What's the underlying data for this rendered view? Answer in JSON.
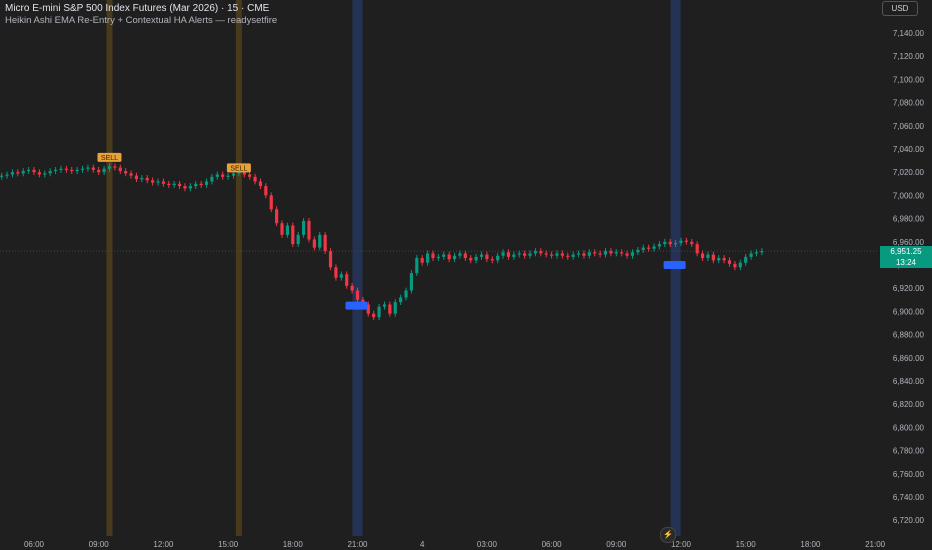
{
  "header": {
    "symbol_line": "Micro E-mini S&P 500 Index Futures (Mar 2026) · 15 · CME",
    "indicator_line": "Heikin Ashi EMA Re-Entry + Contextual HA Alerts — readysetfire"
  },
  "currency_button": "USD",
  "price_label": {
    "price": "6,951.25",
    "countdown": "13:24"
  },
  "replay_icon_glyph": "⚡",
  "colors": {
    "background": "#1f1f1f",
    "up": "#089981",
    "down": "#f23645",
    "sell_band": "#4a3a1c",
    "buy_band": "#243354",
    "sell_label": "#e6a13a",
    "buy_marker": "#2962ff",
    "axis_text": "#b2b5be"
  },
  "chart_data": {
    "type": "candlestick",
    "price_axis_ticks": [
      "7,140.00",
      "7,120.00",
      "7,100.00",
      "7,080.00",
      "7,060.00",
      "7,040.00",
      "7,020.00",
      "7,000.00",
      "6,980.00",
      "6,960.00",
      "6,940.00",
      "6,920.00",
      "6,900.00",
      "6,880.00",
      "6,860.00",
      "6,840.00",
      "6,820.00",
      "6,800.00",
      "6,780.00",
      "6,760.00",
      "6,740.00",
      "6,720.00"
    ],
    "time_axis_ticks": [
      "06:00",
      "09:00",
      "12:00",
      "15:00",
      "18:00",
      "21:00",
      "4",
      "03:00",
      "06:00",
      "09:00",
      "12:00",
      "15:00",
      "18:00",
      "21:00"
    ],
    "ylim": [
      6710,
      7150
    ],
    "bars_per_hour": 4,
    "first_bar_hour": 4.25,
    "closes": [
      7016,
      7017,
      7018,
      7020,
      7019,
      7021,
      7022,
      7020,
      7018,
      7019,
      7021,
      7022,
      7023,
      7022,
      7021,
      7022,
      7023,
      7024,
      7022,
      7020,
      7023,
      7025,
      7024,
      7021,
      7019,
      7017,
      7014,
      7015,
      7013,
      7011,
      7012,
      7010,
      7009,
      7010,
      7008,
      7006,
      7008,
      7010,
      7009,
      7012,
      7016,
      7018,
      7016,
      7017,
      7019,
      7020,
      7018,
      7016,
      7012,
      7008,
      7000,
      6988,
      6976,
      6966,
      6974,
      6958,
      6966,
      6978,
      6962,
      6955,
      6966,
      6952,
      6938,
      6929,
      6932,
      6922,
      6918,
      6910,
      6906,
      6898,
      6895,
      6904,
      6906,
      6898,
      6908,
      6912,
      6918,
      6933,
      6946,
      6942,
      6950,
      6946,
      6947,
      6949,
      6945,
      6948,
      6950,
      6946,
      6944,
      6947,
      6949,
      6945,
      6944,
      6948,
      6951,
      6947,
      6949,
      6950,
      6948,
      6950,
      6952,
      6950,
      6949,
      6948,
      6950,
      6948,
      6947,
      6949,
      6950,
      6948,
      6951,
      6950,
      6949,
      6952,
      6950,
      6951,
      6950,
      6948,
      6951,
      6953,
      6955,
      6954,
      6956,
      6958,
      6960,
      6958,
      6959,
      6961,
      6960,
      6958,
      6950,
      6946,
      6949,
      6944,
      6946,
      6944,
      6941,
      6938,
      6942,
      6947,
      6950,
      6951,
      6952
    ]
  },
  "signals": {
    "sell_label": "SELL",
    "sell_bands": [
      {
        "time": "09:30",
        "price": 7028
      },
      {
        "time": "15:30",
        "price": 7019
      }
    ],
    "buy_bands": [
      {
        "time": "21:00",
        "price": 6905
      },
      {
        "time": "11:45",
        "price": 6940
      }
    ]
  }
}
